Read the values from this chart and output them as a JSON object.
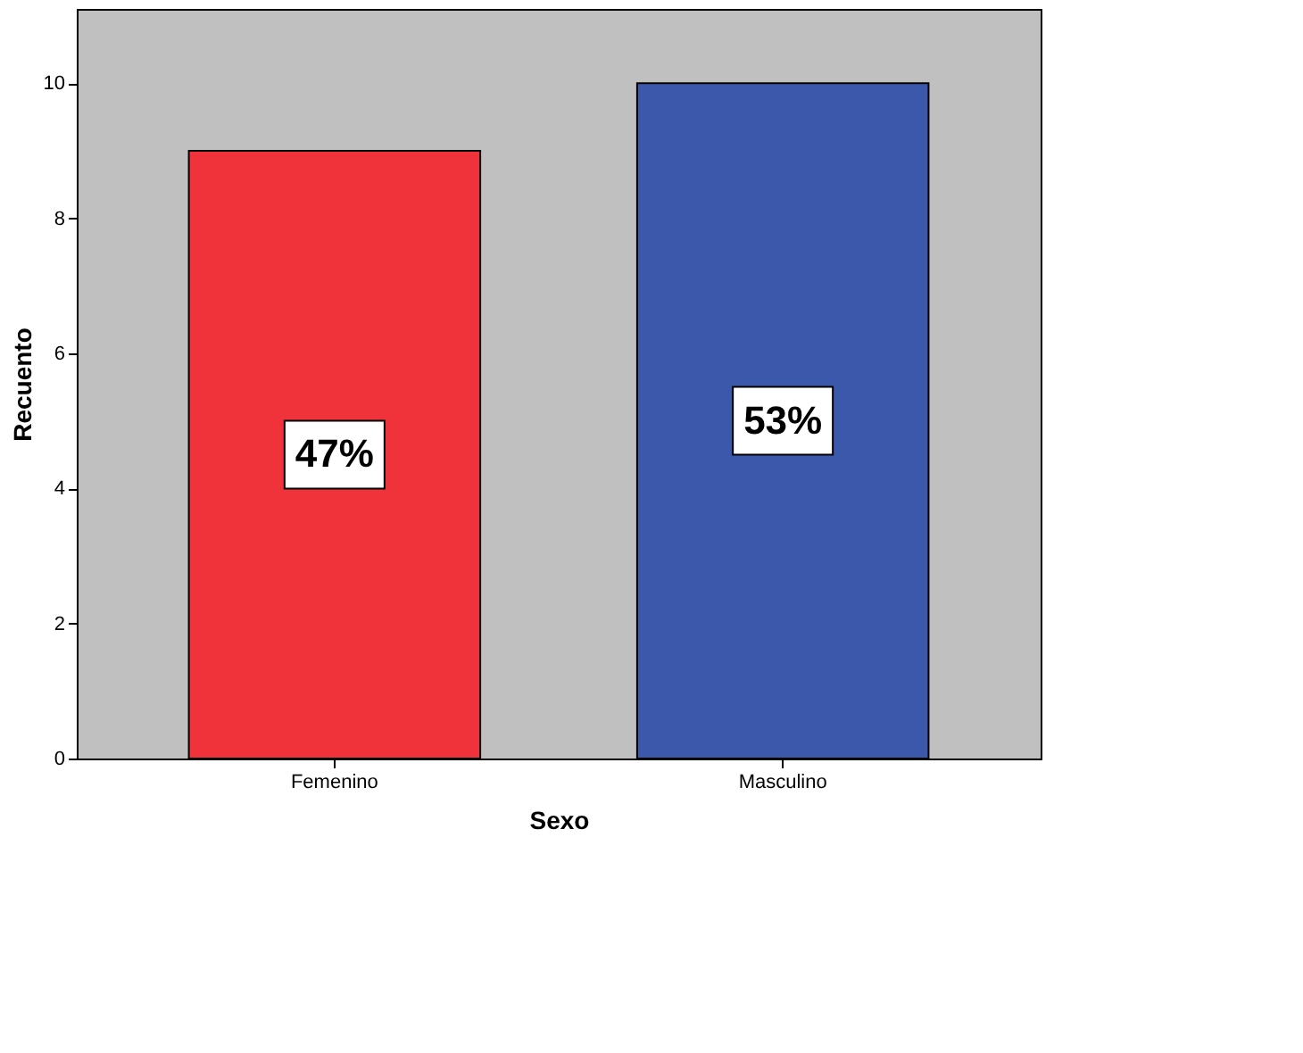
{
  "chart_data": {
    "type": "bar",
    "categories": [
      "Femenino",
      "Masculino"
    ],
    "values": [
      9,
      10
    ],
    "colors": [
      "#f0323a",
      "#3c58ab"
    ],
    "annotations": [
      "47%",
      "53%"
    ],
    "xlabel": "Sexo",
    "ylabel": "Recuento",
    "ylim": [
      0,
      11.1
    ],
    "yticks": [
      0,
      2,
      4,
      6,
      8,
      10
    ],
    "grid": false
  }
}
